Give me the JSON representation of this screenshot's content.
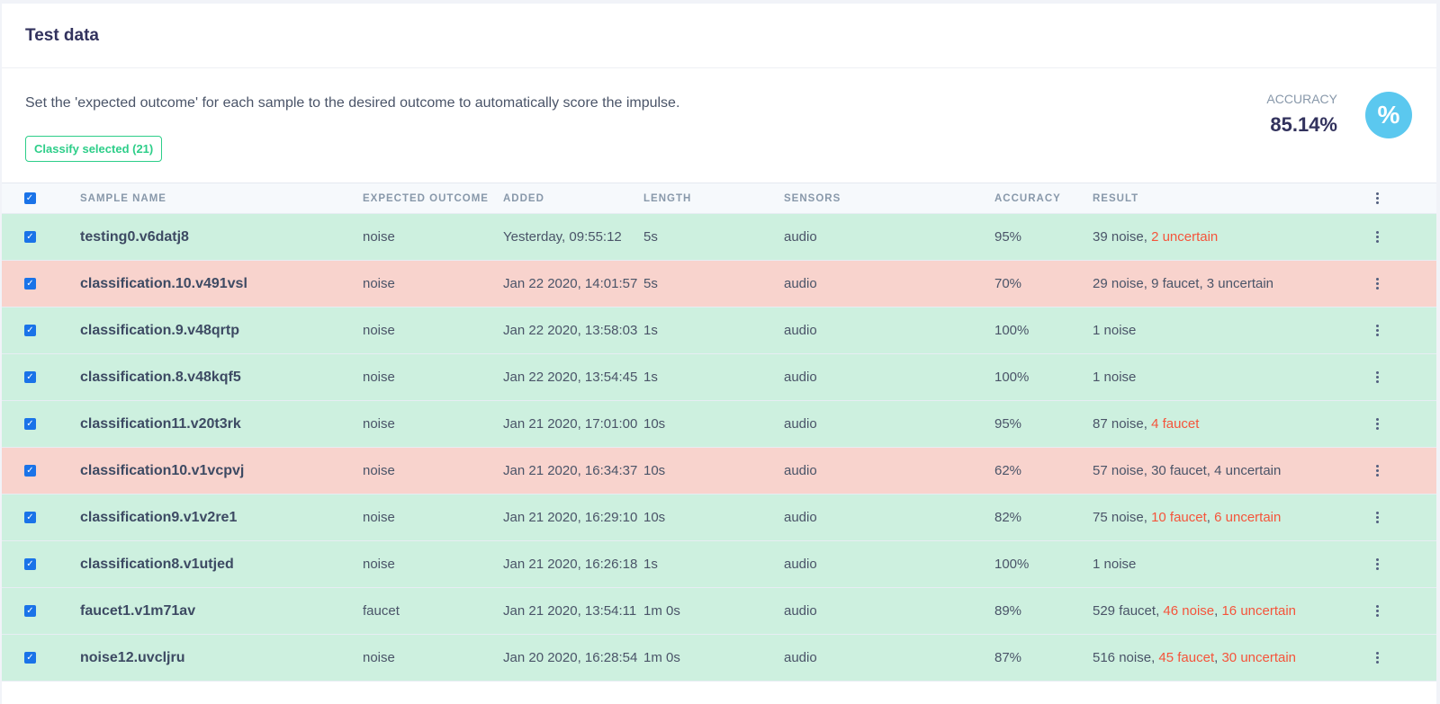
{
  "card": {
    "title": "Test data",
    "description": "Set the 'expected outcome' for each sample to the desired outcome to automatically score the impulse.",
    "classify_button": "Classify selected (21)",
    "accuracy_label": "ACCURACY",
    "accuracy_value": "85.14%",
    "accuracy_icon": "%"
  },
  "table": {
    "columns": [
      "SAMPLE NAME",
      "EXPECTED OUTCOME",
      "ADDED",
      "LENGTH",
      "SENSORS",
      "ACCURACY",
      "RESULT"
    ],
    "header_checked": true,
    "rows": [
      {
        "status": "ok",
        "checked": true,
        "name": "testing0.v6datj8",
        "expected": "noise",
        "added": "Yesterday, 09:55:12",
        "length": "5s",
        "sensors": "audio",
        "accuracy": "95%",
        "result": [
          {
            "text": "39 noise",
            "warn": false
          },
          {
            "text": "2 uncertain",
            "warn": true
          }
        ]
      },
      {
        "status": "bad",
        "checked": true,
        "name": "classification.10.v491vsl",
        "expected": "noise",
        "added": "Jan 22 2020, 14:01:57",
        "length": "5s",
        "sensors": "audio",
        "accuracy": "70%",
        "result": [
          {
            "text": "29 noise",
            "warn": false
          },
          {
            "text": "9 faucet",
            "warn": false
          },
          {
            "text": "3 uncertain",
            "warn": false
          }
        ]
      },
      {
        "status": "ok",
        "checked": true,
        "name": "classification.9.v48qrtp",
        "expected": "noise",
        "added": "Jan 22 2020, 13:58:03",
        "length": "1s",
        "sensors": "audio",
        "accuracy": "100%",
        "result": [
          {
            "text": "1 noise",
            "warn": false
          }
        ]
      },
      {
        "status": "ok",
        "checked": true,
        "name": "classification.8.v48kqf5",
        "expected": "noise",
        "added": "Jan 22 2020, 13:54:45",
        "length": "1s",
        "sensors": "audio",
        "accuracy": "100%",
        "result": [
          {
            "text": "1 noise",
            "warn": false
          }
        ]
      },
      {
        "status": "ok",
        "checked": true,
        "name": "classification11.v20t3rk",
        "expected": "noise",
        "added": "Jan 21 2020, 17:01:00",
        "length": "10s",
        "sensors": "audio",
        "accuracy": "95%",
        "result": [
          {
            "text": "87 noise",
            "warn": false
          },
          {
            "text": "4 faucet",
            "warn": true
          }
        ]
      },
      {
        "status": "bad",
        "checked": true,
        "name": "classification10.v1vcpvj",
        "expected": "noise",
        "added": "Jan 21 2020, 16:34:37",
        "length": "10s",
        "sensors": "audio",
        "accuracy": "62%",
        "result": [
          {
            "text": "57 noise",
            "warn": false
          },
          {
            "text": "30 faucet",
            "warn": false
          },
          {
            "text": "4 uncertain",
            "warn": false
          }
        ]
      },
      {
        "status": "ok",
        "checked": true,
        "name": "classification9.v1v2re1",
        "expected": "noise",
        "added": "Jan 21 2020, 16:29:10",
        "length": "10s",
        "sensors": "audio",
        "accuracy": "82%",
        "result": [
          {
            "text": "75 noise",
            "warn": false
          },
          {
            "text": "10 faucet",
            "warn": true
          },
          {
            "text": "6 uncertain",
            "warn": true
          }
        ]
      },
      {
        "status": "ok",
        "checked": true,
        "name": "classification8.v1utjed",
        "expected": "noise",
        "added": "Jan 21 2020, 16:26:18",
        "length": "1s",
        "sensors": "audio",
        "accuracy": "100%",
        "result": [
          {
            "text": "1 noise",
            "warn": false
          }
        ]
      },
      {
        "status": "ok",
        "checked": true,
        "name": "faucet1.v1m71av",
        "expected": "faucet",
        "added": "Jan 21 2020, 13:54:11",
        "length": "1m 0s",
        "sensors": "audio",
        "accuracy": "89%",
        "result": [
          {
            "text": "529 faucet",
            "warn": false
          },
          {
            "text": "46 noise",
            "warn": true
          },
          {
            "text": "16 uncertain",
            "warn": true
          }
        ]
      },
      {
        "status": "ok",
        "checked": true,
        "name": "noise12.uvcljru",
        "expected": "noise",
        "added": "Jan 20 2020, 16:28:54",
        "length": "1m 0s",
        "sensors": "audio",
        "accuracy": "87%",
        "result": [
          {
            "text": "516 noise",
            "warn": false
          },
          {
            "text": "45 faucet",
            "warn": true
          },
          {
            "text": "30 uncertain",
            "warn": true
          }
        ]
      }
    ]
  },
  "icons": {
    "checkbox": "checkbox-checked-icon",
    "row_menu": "kebab-menu-icon",
    "accuracy": "percent-icon"
  },
  "colors": {
    "correct_row": "#cdf0df",
    "incorrect_row": "#f8d3cd",
    "warning_text": "#f5543b",
    "primary_green": "#2dce89",
    "accuracy_circle": "#5bc8ef",
    "checkbox": "#1a73e8"
  }
}
